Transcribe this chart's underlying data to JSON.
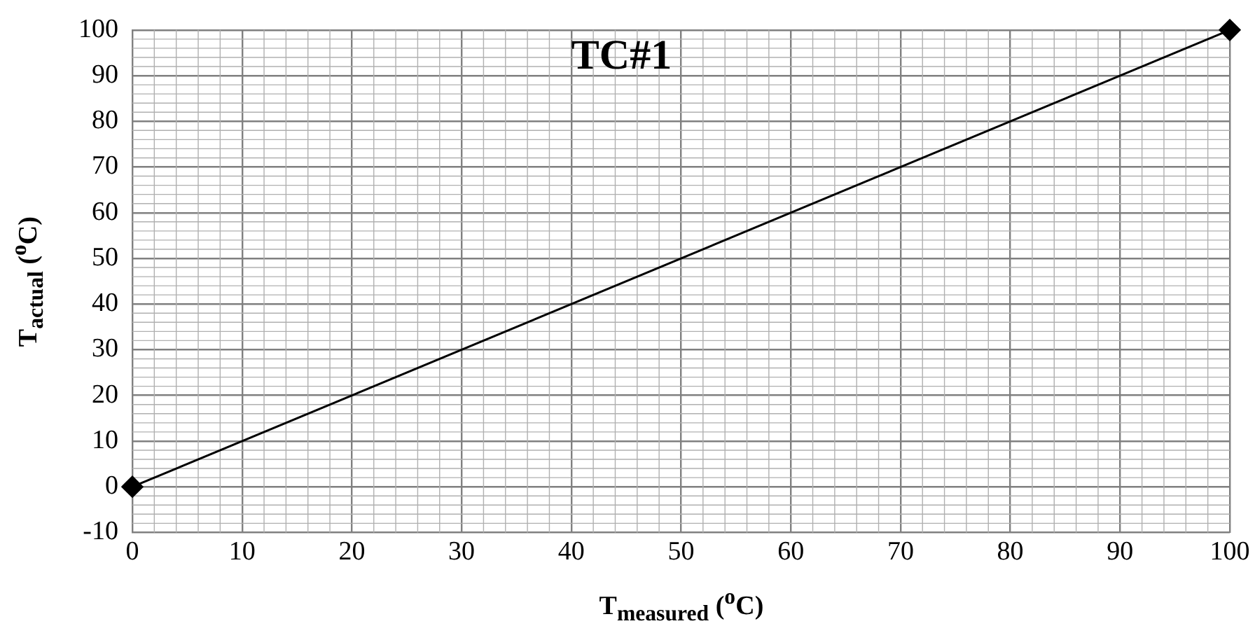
{
  "chart_data": {
    "type": "line",
    "title": "TC#1",
    "xlabel": "T$_{measured}$ ($^{o}$C)",
    "ylabel": "T$_{actual}$ ($^{o}$C)",
    "series": [
      {
        "color": "#000000",
        "x": [
          0,
          100
        ],
        "values": [
          0,
          100
        ]
      }
    ],
    "xlim": [
      0,
      100
    ],
    "xticks": [
      0,
      10,
      20,
      30,
      40,
      50,
      60,
      70,
      80,
      90,
      100
    ],
    "ylim": [
      -10,
      100
    ],
    "yticks": [
      -10,
      0,
      10,
      20,
      30,
      40,
      50,
      60,
      70,
      80,
      90,
      100
    ],
    "grid": true,
    "legend": false,
    "marker": "diamond",
    "line_style": "solid"
  }
}
